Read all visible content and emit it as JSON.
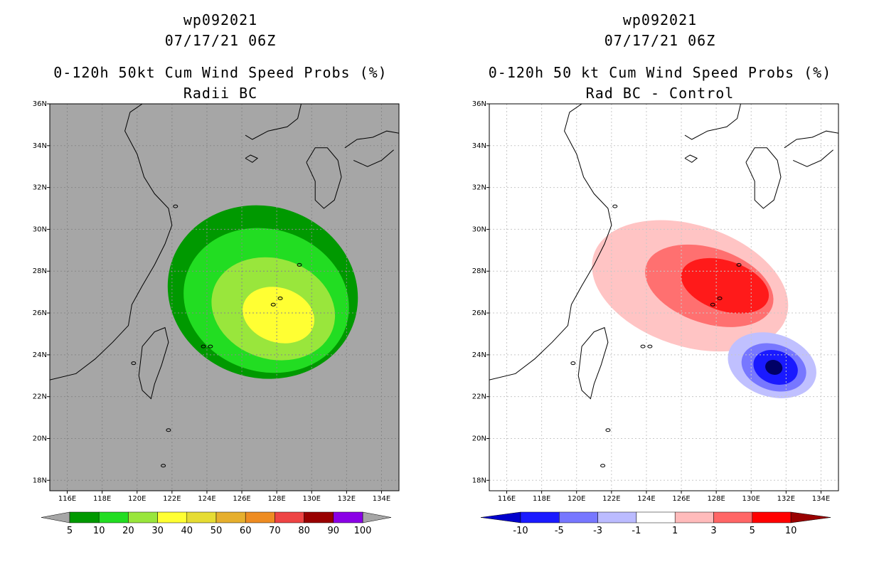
{
  "chart_data": [
    {
      "type": "heatmap",
      "storm_id": "wp092021",
      "datetime": "07/17/21 06Z",
      "title": "0-120h 50kt Cum Wind Speed Probs (%)",
      "subtitle": "Radii BC",
      "x_ticks": [
        "116E",
        "118E",
        "120E",
        "122E",
        "124E",
        "126E",
        "128E",
        "130E",
        "132E",
        "134E"
      ],
      "y_ticks": [
        "36N",
        "34N",
        "32N",
        "30N",
        "28N",
        "26N",
        "24N",
        "22N",
        "20N",
        "18N"
      ],
      "lon_range": [
        115,
        135
      ],
      "lat_range": [
        17.5,
        36
      ],
      "background_color": "#a6a6a6",
      "colorbar": {
        "labels": [
          "5",
          "10",
          "20",
          "30",
          "40",
          "50",
          "60",
          "70",
          "80",
          "90",
          "100"
        ],
        "colors": [
          "#009900",
          "#22dd22",
          "#99e63c",
          "#ffff33",
          "#e6dc33",
          "#e6af2d",
          "#ee8c22",
          "#ee4444",
          "#990000",
          "#8a00e6"
        ]
      },
      "contours": [
        {
          "level": "5-10",
          "color": "#009900",
          "center": [
            127.2,
            27.0
          ],
          "radii": [
            5.5,
            4.1
          ]
        },
        {
          "level": "10-20",
          "color": "#22dd22",
          "center": [
            127.4,
            26.6
          ],
          "radii": [
            4.8,
            3.4
          ]
        },
        {
          "level": "20-30",
          "color": "#99e63c",
          "center": [
            127.8,
            26.2
          ],
          "radii": [
            3.6,
            2.4
          ]
        },
        {
          "level": "30-40",
          "color": "#ffff33",
          "center": [
            128.1,
            25.9
          ],
          "radii": [
            2.1,
            1.3
          ]
        }
      ]
    },
    {
      "type": "heatmap",
      "storm_id": "wp092021",
      "datetime": "07/17/21 06Z",
      "title": "0-120h 50 kt Cum Wind Speed Probs (%)",
      "subtitle": "Rad BC - Control",
      "x_ticks": [
        "116E",
        "118E",
        "120E",
        "122E",
        "124E",
        "126E",
        "128E",
        "130E",
        "132E",
        "134E"
      ],
      "y_ticks": [
        "36N",
        "34N",
        "32N",
        "30N",
        "28N",
        "26N",
        "24N",
        "22N",
        "20N",
        "18N"
      ],
      "lon_range": [
        115,
        135
      ],
      "lat_range": [
        17.5,
        36
      ],
      "background_color": "#ffffff",
      "colorbar": {
        "labels": [
          "-10",
          "-5",
          "-3",
          "-1",
          "1",
          "3",
          "5",
          "10"
        ],
        "colors": [
          "#0000cc",
          "#1a1aff",
          "#7777ff",
          "#bbbbff",
          "#ffffff",
          "#ffbbbb",
          "#ff6666",
          "#ff0000",
          "#990000"
        ]
      },
      "contours": [
        {
          "level": "1-3",
          "color": "#ffc4c4",
          "center": [
            126.5,
            27.3
          ],
          "radii": [
            5.8,
            2.9
          ]
        },
        {
          "level": "3-5",
          "color": "#ff7070",
          "center": [
            127.6,
            27.3
          ],
          "radii": [
            3.8,
            1.8
          ]
        },
        {
          "level": "5-10",
          "color": "#ff1a1a",
          "center": [
            128.5,
            27.3
          ],
          "radii": [
            2.6,
            1.2
          ]
        },
        {
          "level": "-1--3",
          "color": "#c0c0ff",
          "center": [
            131.2,
            23.5
          ],
          "radii": [
            2.6,
            1.5
          ]
        },
        {
          "level": "-3--5",
          "color": "#7777ff",
          "center": [
            131.3,
            23.4
          ],
          "radii": [
            1.9,
            1.1
          ]
        },
        {
          "level": "-5--10",
          "color": "#1a1aff",
          "center": [
            131.4,
            23.4
          ],
          "radii": [
            1.3,
            0.8
          ]
        },
        {
          "level": "<-10",
          "color": "#000066",
          "center": [
            131.3,
            23.4
          ],
          "radii": [
            0.5,
            0.35
          ]
        }
      ]
    }
  ]
}
